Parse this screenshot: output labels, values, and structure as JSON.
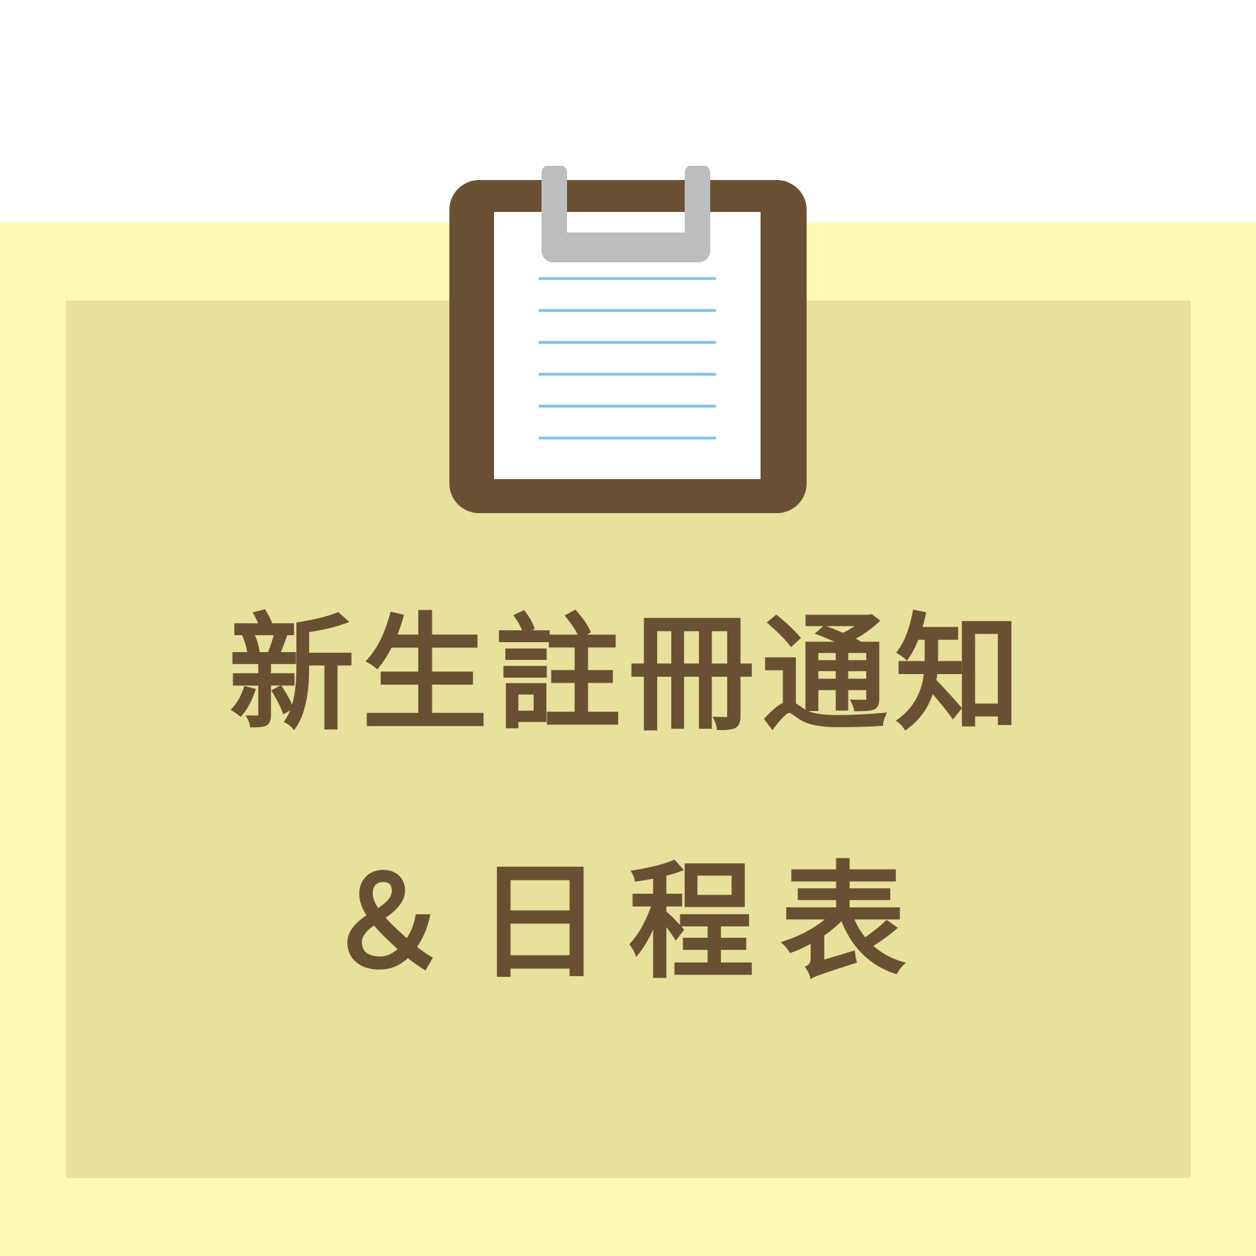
{
  "title": {
    "line1": "新生註冊通知",
    "line2": "＆日程表"
  },
  "icon": "clipboard-icon",
  "colors": {
    "background_top": "#ffffff",
    "outer_band": "#fff9b4",
    "inner_panel": "#e6e19b",
    "text": "#6a5032",
    "clipboard_frame": "#6a5032",
    "clipboard_paper": "#ffffff",
    "clipboard_clip": "#bdbdbd",
    "paper_lines": "#7ec8ec"
  }
}
